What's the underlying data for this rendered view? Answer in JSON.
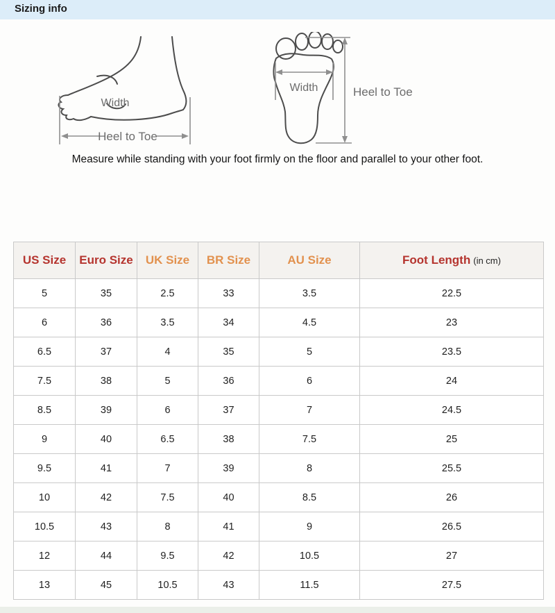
{
  "header": {
    "title": "Sizing info"
  },
  "diagrams": {
    "side": {
      "width_label": "Width",
      "heel_to_toe_label": "Heel to Toe"
    },
    "print": {
      "width_label": "Width",
      "heel_to_toe_label": "Heel to Toe"
    },
    "instruction": "Measure while standing with your foot firmly on the floor and parallel to your other foot."
  },
  "size_table": {
    "columns": [
      {
        "label": "US Size",
        "color": "#b5342e"
      },
      {
        "label": "Euro Size",
        "color": "#b5342e"
      },
      {
        "label": "UK Size",
        "color": "#e2914e"
      },
      {
        "label": "BR Size",
        "color": "#e2914e"
      },
      {
        "label": "AU Size",
        "color": "#e2914e"
      },
      {
        "label": "Foot Length",
        "suffix": "(in cm)",
        "color": "#b5342e"
      }
    ],
    "rows": [
      [
        "5",
        "35",
        "2.5",
        "33",
        "3.5",
        "22.5"
      ],
      [
        "6",
        "36",
        "3.5",
        "34",
        "4.5",
        "23"
      ],
      [
        "6.5",
        "37",
        "4",
        "35",
        "5",
        "23.5"
      ],
      [
        "7.5",
        "38",
        "5",
        "36",
        "6",
        "24"
      ],
      [
        "8.5",
        "39",
        "6",
        "37",
        "7",
        "24.5"
      ],
      [
        "9",
        "40",
        "6.5",
        "38",
        "7.5",
        "25"
      ],
      [
        "9.5",
        "41",
        "7",
        "39",
        "8",
        "25.5"
      ],
      [
        "10",
        "42",
        "7.5",
        "40",
        "8.5",
        "26"
      ],
      [
        "10.5",
        "43",
        "8",
        "41",
        "9",
        "26.5"
      ],
      [
        "12",
        "44",
        "9.5",
        "42",
        "10.5",
        "27"
      ],
      [
        "13",
        "45",
        "10.5",
        "43",
        "11.5",
        "27.5"
      ]
    ]
  },
  "colors": {
    "title_bar_bg": "#dcedf9",
    "table_header_bg": "#f4f2ef",
    "dark_red_header": "#b5342e",
    "orange_header": "#e2914e",
    "table_border": "#c9c9c9"
  }
}
